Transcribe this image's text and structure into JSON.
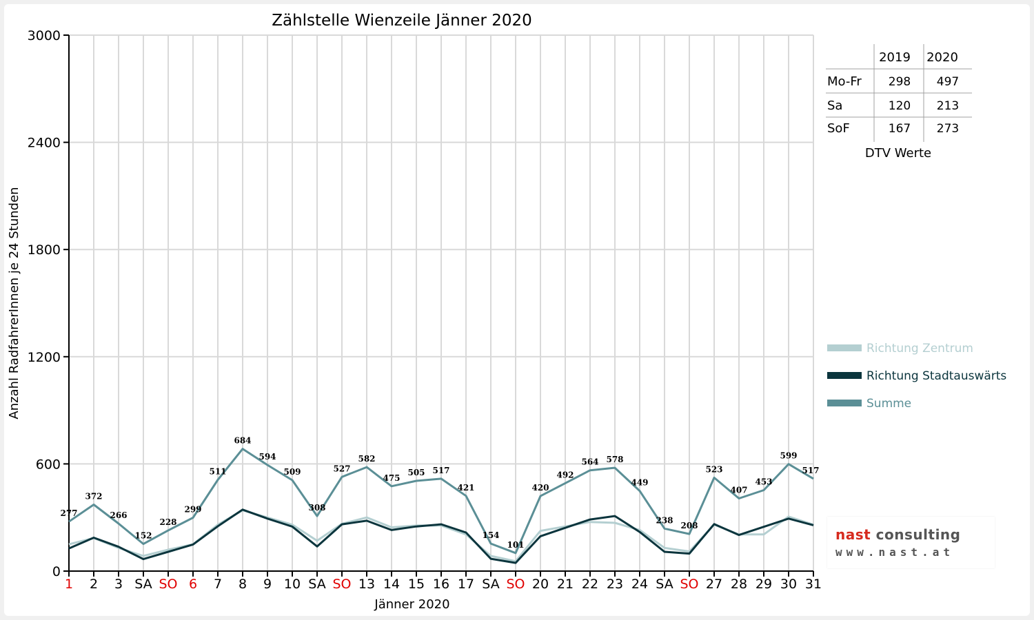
{
  "chart_data": {
    "type": "line",
    "title": "Zählstelle Wienzeile Jänner 2020",
    "xlabel": "Jänner 2020",
    "ylabel": "Anzahl RadfahrerInnen je 24 Stunden",
    "ylim": [
      0,
      3000
    ],
    "yticks": [
      0,
      600,
      1200,
      1800,
      2400,
      3000
    ],
    "grid": true,
    "legend_position": "right",
    "categories": [
      "1",
      "2",
      "3",
      "SA",
      "SO",
      "6",
      "7",
      "8",
      "9",
      "10",
      "SA",
      "SO",
      "13",
      "14",
      "15",
      "16",
      "17",
      "SA",
      "SO",
      "20",
      "21",
      "22",
      "23",
      "24",
      "SA",
      "SO",
      "27",
      "28",
      "29",
      "30",
      "31"
    ],
    "red_categories": [
      0,
      4,
      5,
      11,
      18,
      25
    ],
    "series": [
      {
        "name": "Richtung Zentrum",
        "color": "#b4cfd1",
        "values": [
          150,
          185,
          130,
          85,
          120,
          150,
          260,
          340,
          300,
          260,
          170,
          265,
          300,
          245,
          255,
          255,
          205,
          85,
          55,
          225,
          250,
          275,
          270,
          230,
          130,
          110,
          260,
          205,
          205,
          305,
          260
        ]
      },
      {
        "name": "Richtung Stadtauswärts",
        "color": "#0b353d",
        "values": [
          127,
          187,
          136,
          67,
          108,
          149,
          251,
          344,
          294,
          249,
          138,
          262,
          282,
          230,
          250,
          262,
          216,
          69,
          46,
          195,
          242,
          289,
          308,
          219,
          108,
          98,
          263,
          202,
          248,
          294,
          257
        ]
      },
      {
        "name": "Summe",
        "color": "#5b8f96",
        "values": [
          277,
          372,
          266,
          152,
          228,
          299,
          511,
          684,
          594,
          509,
          308,
          527,
          582,
          475,
          505,
          517,
          421,
          154,
          101,
          420,
          492,
          564,
          578,
          449,
          238,
          208,
          523,
          407,
          453,
          599,
          517
        ],
        "data_labels": true
      }
    ]
  },
  "dtv_table": {
    "caption": "DTV Werte",
    "columns": [
      "2019",
      "2020"
    ],
    "rows": [
      {
        "label": "Mo-Fr",
        "v2019": "298",
        "v2020": "497"
      },
      {
        "label": "Sa",
        "v2019": "120",
        "v2020": "213"
      },
      {
        "label": "SoF",
        "v2019": "167",
        "v2020": "273"
      }
    ]
  },
  "logo": {
    "brand_part1": "nast",
    "brand_part2": "consulting",
    "url": "www.nast.at"
  }
}
